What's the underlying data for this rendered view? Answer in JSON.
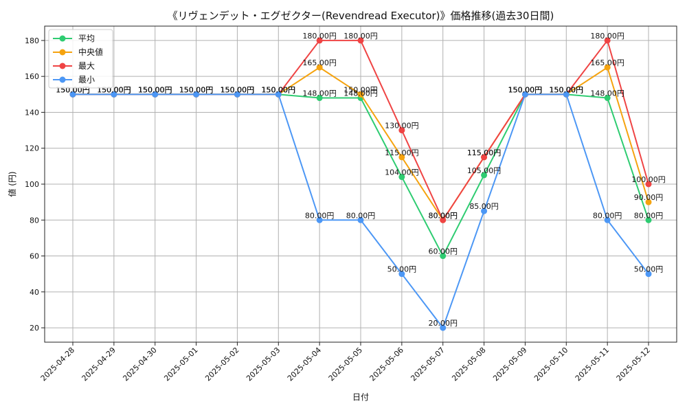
{
  "chart_data": {
    "type": "line",
    "title": "《リヴェンデット・エグゼクター(Revendread Executor)》価格推移(過去30日間)",
    "xlabel": "日付",
    "ylabel": "値 (円)",
    "x": [
      "2025-04-28",
      "2025-04-29",
      "2025-04-30",
      "2025-05-01",
      "2025-05-02",
      "2025-05-03",
      "2025-05-04",
      "2025-05-05",
      "2025-05-06",
      "2025-05-07",
      "2025-05-08",
      "2025-05-09",
      "2025-05-10",
      "2025-05-11",
      "2025-05-12"
    ],
    "ylim": [
      12,
      188
    ],
    "yticks": [
      20,
      40,
      60,
      80,
      100,
      120,
      140,
      160,
      180
    ],
    "grid": true,
    "legend_position": "top-left",
    "label_suffix": "円",
    "series": [
      {
        "name": "平均",
        "color": "#2ecc71",
        "values": [
          150,
          150,
          150,
          150,
          150,
          150,
          148,
          148,
          104,
          60,
          105,
          150,
          150,
          148,
          80
        ]
      },
      {
        "name": "中央値",
        "color": "#f5a30f",
        "values": [
          150,
          150,
          150,
          150,
          150,
          150,
          165,
          150,
          115,
          80,
          115,
          150,
          150,
          165,
          90
        ]
      },
      {
        "name": "最大",
        "color": "#ef4444",
        "values": [
          150,
          150,
          150,
          150,
          150,
          150,
          180,
          180,
          130,
          80,
          115,
          150,
          150,
          180,
          100
        ]
      },
      {
        "name": "最小",
        "color": "#4c97f5",
        "values": [
          150,
          150,
          150,
          150,
          150,
          150,
          80,
          80,
          50,
          20,
          85,
          150,
          150,
          80,
          50
        ]
      }
    ]
  }
}
